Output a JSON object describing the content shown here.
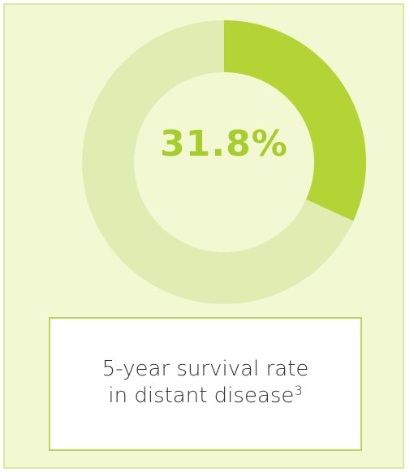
{
  "chart_data": {
    "type": "pie",
    "subtype": "donut",
    "values": [
      31.8,
      68.2
    ],
    "center_label": "31.8%",
    "colors": {
      "highlight": "#b4d436",
      "remainder": "#e1ecb3",
      "panel_background": "#f2f8d2",
      "panel_border": "#d9ea9e",
      "caption_border": "#b9d85a",
      "value_text": "#a7cd2c"
    }
  },
  "caption": {
    "line1": "5-year survival rate",
    "line2": "in distant disease",
    "footnote": "3"
  }
}
